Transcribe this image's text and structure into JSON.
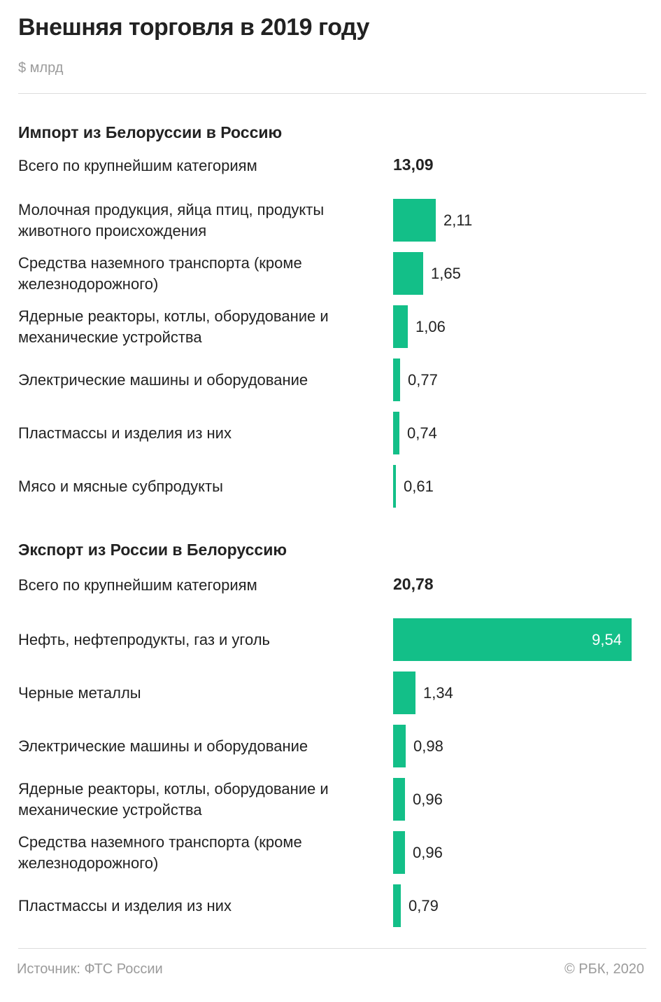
{
  "header": {
    "title": "Внешняя торговля в 2019 году",
    "unit": "$ млрд"
  },
  "colors": {
    "bar": "#13bf88",
    "text": "#222222",
    "muted": "#9b9b9b",
    "divider": "#dcdcdc"
  },
  "chart_data": [
    {
      "type": "bar",
      "orientation": "horizontal",
      "title": "Импорт из Белоруссии в Россию",
      "total_label": "Всего по крупнейшим категориям",
      "total_value": "13,09",
      "categories": [
        "Молочная продукция, яйца птиц, продукты животного происхождения",
        "Средства наземного транспорта (кроме железнодорожного)",
        "Ядерные реакторы, котлы, оборудование и механические устройства",
        "Электрические машины и оборудование",
        "Пластмассы и изделия из них",
        "Мясо и мясные субпродукты"
      ],
      "values": [
        2.11,
        1.65,
        1.06,
        0.77,
        0.74,
        0.61
      ],
      "value_labels": [
        "2,11",
        "1,65",
        "1,06",
        "0,77",
        "0,74",
        "0,61"
      ]
    },
    {
      "type": "bar",
      "orientation": "horizontal",
      "title": "Экспорт из России в Белоруссию",
      "total_label": "Всего по крупнейшим категориям",
      "total_value": "20,78",
      "categories": [
        "Нефть, нефтепродукты, газ и уголь",
        "Черные металлы",
        "Электрические машины и оборудование",
        "Ядерные реакторы, котлы, оборудование и механические устройства",
        "Средства наземного транспорта (кроме железнодорожного)",
        "Пластмассы и изделия из них"
      ],
      "values": [
        9.54,
        1.34,
        0.98,
        0.96,
        0.96,
        0.79
      ],
      "value_labels": [
        "9,54",
        "1,34",
        "0,98",
        "0,96",
        "0,96",
        "0,79"
      ]
    }
  ],
  "footer": {
    "source": "Источник: ФТС России",
    "copyright": "© РБК, 2020"
  }
}
